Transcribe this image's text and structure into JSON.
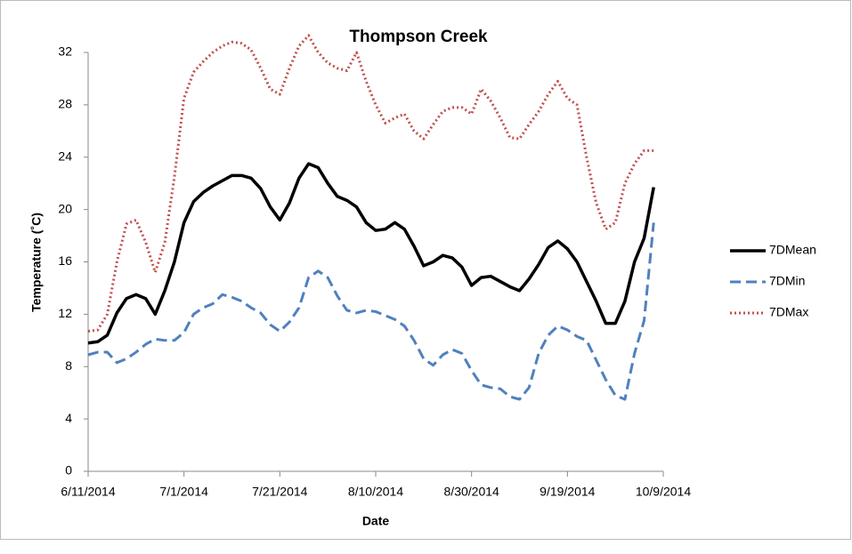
{
  "chart_data": {
    "type": "line",
    "title": "Thompson Creek",
    "x_label": "Date",
    "y_label": "Temperature (˚C)",
    "x": [
      "6/11/2014",
      "6/13/2014",
      "6/15/2014",
      "6/17/2014",
      "6/19/2014",
      "6/21/2014",
      "6/23/2014",
      "6/25/2014",
      "6/27/2014",
      "6/29/2014",
      "7/1/2014",
      "7/3/2014",
      "7/5/2014",
      "7/7/2014",
      "7/9/2014",
      "7/11/2014",
      "7/13/2014",
      "7/15/2014",
      "7/17/2014",
      "7/19/2014",
      "7/21/2014",
      "7/23/2014",
      "7/25/2014",
      "7/27/2014",
      "7/29/2014",
      "7/31/2014",
      "8/2/2014",
      "8/4/2014",
      "8/6/2014",
      "8/8/2014",
      "8/10/2014",
      "8/12/2014",
      "8/14/2014",
      "8/16/2014",
      "8/18/2014",
      "8/20/2014",
      "8/22/2014",
      "8/24/2014",
      "8/26/2014",
      "8/28/2014",
      "8/30/2014",
      "9/1/2014",
      "9/3/2014",
      "9/5/2014",
      "9/7/2014",
      "9/9/2014",
      "9/11/2014",
      "9/13/2014",
      "9/15/2014",
      "9/17/2014",
      "9/19/2014",
      "9/21/2014",
      "9/23/2014",
      "9/25/2014",
      "9/27/2014",
      "9/29/2014",
      "10/1/2014",
      "10/3/2014",
      "10/5/2014",
      "10/7/2014"
    ],
    "series": [
      {
        "name": "7DMean",
        "color": "#000000",
        "style": "solid",
        "values": [
          9.8,
          9.9,
          10.4,
          12.1,
          13.2,
          13.5,
          13.2,
          12.0,
          13.8,
          16.0,
          19.0,
          20.6,
          21.3,
          21.8,
          22.2,
          22.6,
          22.6,
          22.4,
          21.6,
          20.2,
          19.2,
          20.5,
          22.4,
          23.5,
          23.2,
          22.0,
          21.0,
          20.7,
          20.2,
          19.0,
          18.4,
          18.5,
          19.0,
          18.5,
          17.2,
          15.7,
          16.0,
          16.5,
          16.3,
          15.6,
          14.2,
          14.8,
          14.9,
          14.5,
          14.1,
          13.8,
          14.7,
          15.8,
          17.1,
          17.6,
          17.0,
          16.0,
          14.5,
          13.0,
          11.3,
          11.3,
          13.0,
          16.0,
          17.8,
          21.7
        ]
      },
      {
        "name": "7DMin",
        "color": "#4f81bd",
        "style": "dashed",
        "values": [
          8.9,
          9.1,
          9.1,
          8.3,
          8.6,
          9.1,
          9.7,
          10.1,
          10.0,
          10.0,
          10.6,
          12.0,
          12.5,
          12.8,
          13.5,
          13.3,
          13.0,
          12.5,
          12.1,
          11.2,
          10.7,
          11.4,
          12.5,
          14.8,
          15.3,
          14.8,
          13.4,
          12.3,
          12.1,
          12.3,
          12.2,
          11.9,
          11.6,
          11.1,
          10.0,
          8.6,
          8.1,
          8.9,
          9.3,
          9.0,
          7.7,
          6.6,
          6.4,
          6.3,
          5.7,
          5.5,
          6.4,
          9.0,
          10.4,
          11.1,
          10.8,
          10.3,
          10.0,
          8.5,
          7.0,
          5.8,
          5.5,
          9.0,
          11.5,
          19.0
        ]
      },
      {
        "name": "7DMax",
        "color": "#c0504d",
        "style": "dotted",
        "values": [
          10.7,
          10.8,
          12.0,
          16.0,
          18.9,
          19.2,
          17.5,
          15.2,
          17.5,
          22.5,
          28.5,
          30.5,
          31.3,
          32.0,
          32.5,
          32.8,
          32.7,
          32.2,
          30.8,
          29.2,
          28.8,
          30.8,
          32.5,
          33.3,
          32.0,
          31.2,
          30.8,
          30.6,
          32.0,
          29.8,
          28.0,
          26.6,
          27.0,
          27.3,
          26.0,
          25.4,
          26.5,
          27.5,
          27.8,
          27.8,
          27.3,
          29.2,
          28.3,
          27.0,
          25.5,
          25.4,
          26.5,
          27.5,
          28.8,
          29.8,
          28.5,
          28.0,
          24.0,
          20.5,
          18.5,
          19.0,
          22.0,
          23.5,
          24.5,
          24.5
        ]
      }
    ],
    "xlim": [
      "6/11/2014",
      "10/9/2014"
    ],
    "xticks": [
      "6/11/2014",
      "7/1/2014",
      "7/21/2014",
      "8/10/2014",
      "8/30/2014",
      "9/19/2014",
      "10/9/2014"
    ],
    "ylim": [
      0,
      32
    ],
    "yticks": [
      0,
      4,
      8,
      12,
      16,
      20,
      24,
      28,
      32
    ],
    "legend": "right",
    "grid": false
  }
}
